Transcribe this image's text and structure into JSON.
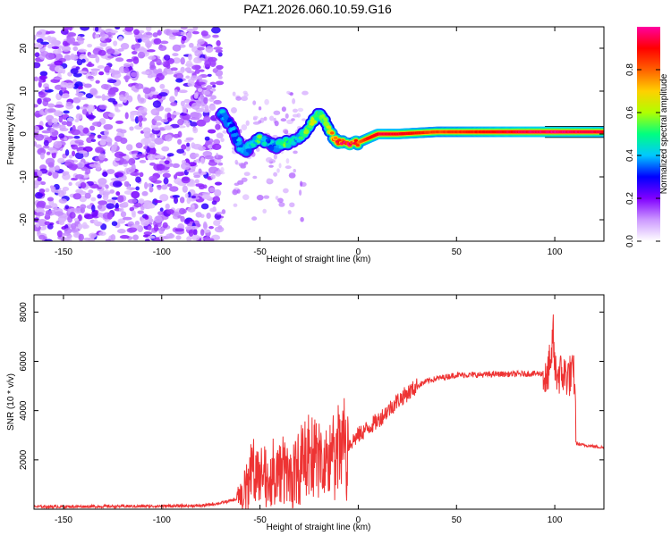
{
  "title": "PAZ1.2026.060.10.59.G16",
  "colorbar": {
    "label": "Normalized spectral amplitude",
    "range": [
      0,
      1
    ],
    "ticks": [
      0.0,
      0.2,
      0.4,
      0.6,
      0.8
    ],
    "tick_labels": [
      "0.0",
      "0.2",
      "0.4",
      "0.6",
      "0.8"
    ],
    "colors": [
      "#ffffff",
      "#cc99ff",
      "#8000ff",
      "#0000ff",
      "#00c8ff",
      "#00ff80",
      "#b0ff00",
      "#ffd000",
      "#ff6000",
      "#ff0000",
      "#ff00a0"
    ]
  },
  "chart_data": [
    {
      "type": "heatmap",
      "title": "PAZ1.2026.060.10.59.G16",
      "xlabel": "Height of straight line (km)",
      "ylabel": "Frequency (Hz)",
      "xlim": [
        -165,
        125
      ],
      "ylim": [
        -25,
        25
      ],
      "xticks": [
        -150,
        -100,
        -50,
        0,
        50,
        100
      ],
      "xtick_labels": [
        "-150",
        "-100",
        "-50",
        "0",
        "50",
        "100"
      ],
      "yticks": [
        -20,
        -10,
        0,
        10,
        20
      ],
      "ytick_labels": [
        "-20",
        "-10",
        "0",
        "10",
        "20"
      ],
      "noise_region_x": [
        -165,
        -70
      ],
      "ridge": {
        "x": [
          -70,
          -65,
          -60,
          -57,
          -54,
          -50,
          -46,
          -42,
          -38,
          -35,
          -31,
          -27,
          -23,
          -20,
          -17,
          -14,
          -10,
          -5,
          0,
          5,
          10,
          20,
          40,
          60,
          80,
          100,
          125
        ],
        "frequency": [
          5,
          2,
          -3,
          -4,
          -2,
          -1,
          -2,
          -3,
          -2,
          -2,
          -1,
          0.5,
          3,
          5,
          3,
          0,
          -2,
          -2,
          -2,
          -1,
          0,
          0,
          0.5,
          0.5,
          0.5,
          0.5,
          0.5
        ],
        "amplitude": [
          0.4,
          0.35,
          0.4,
          0.4,
          0.45,
          0.5,
          0.4,
          0.35,
          0.55,
          0.45,
          0.4,
          0.55,
          0.6,
          0.45,
          0.55,
          0.7,
          0.85,
          0.9,
          0.8,
          0.9,
          0.95,
          0.95,
          0.85,
          0.9,
          0.95,
          1.0,
          0.95
        ]
      }
    },
    {
      "type": "line",
      "xlabel": "Height of straight line (km)",
      "ylabel": "SNR (10 * v/v)",
      "xlim": [
        -165,
        125
      ],
      "ylim": [
        0,
        8700
      ],
      "xticks": [
        -150,
        -100,
        -50,
        0,
        50,
        100
      ],
      "xtick_labels": [
        "-150",
        "-100",
        "-50",
        "0",
        "50",
        "100"
      ],
      "yticks": [
        2000,
        4000,
        6000,
        8000
      ],
      "ytick_labels": [
        "2000",
        "4000",
        "6000",
        "8000"
      ],
      "series": [
        {
          "name": "SNR",
          "color": "#ee3333",
          "x": [
            -165,
            -140,
            -110,
            -80,
            -70,
            -62,
            -58,
            -55,
            -52,
            -50,
            -46,
            -42,
            -38,
            -35,
            -30,
            -26,
            -22,
            -18,
            -14,
            -10,
            -5,
            0,
            5,
            10,
            15,
            20,
            25,
            30,
            35,
            40,
            50,
            60,
            70,
            80,
            90,
            94,
            96,
            97,
            98,
            99,
            100,
            102,
            105,
            110,
            111,
            115,
            120,
            125
          ],
          "y": [
            100,
            110,
            120,
            140,
            250,
            400,
            900,
            1500,
            1600,
            1200,
            1100,
            1400,
            1600,
            1300,
            1700,
            2000,
            2100,
            1800,
            1900,
            2300,
            2600,
            3000,
            3300,
            3600,
            4000,
            4400,
            4700,
            5000,
            5200,
            5300,
            5450,
            5450,
            5480,
            5480,
            5500,
            5500,
            5000,
            6000,
            5200,
            7500,
            5600,
            5500,
            5450,
            5400,
            2650,
            2600,
            2550,
            2500
          ]
        }
      ]
    }
  ]
}
